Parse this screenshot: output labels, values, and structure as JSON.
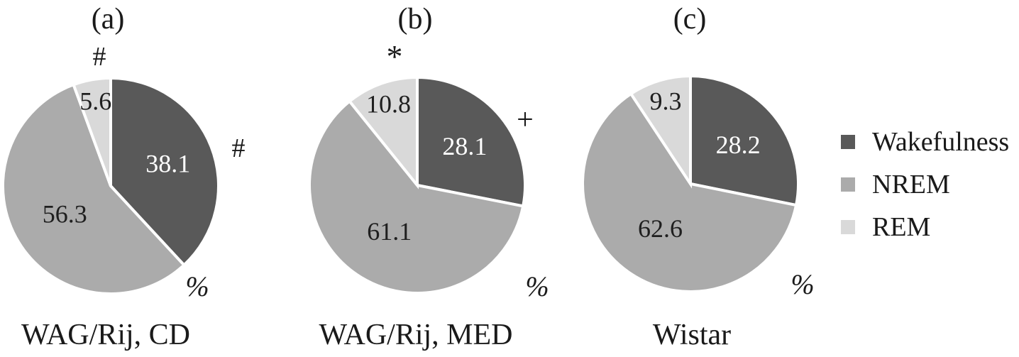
{
  "figure": {
    "background": "#ffffff"
  },
  "colors": {
    "wakefulness": "#595959",
    "nrem": "#ababab",
    "rem": "#d9d9d9",
    "slice_border": "#ffffff",
    "text": "#1a1a1a",
    "value_label_on_dark": "#ffffff",
    "value_label_dark": "#1f1f1f"
  },
  "legend": {
    "position": "right",
    "items": [
      {
        "label": "Wakefulness",
        "color": "#595959"
      },
      {
        "label": "NREM",
        "color": "#ababab"
      },
      {
        "label": "REM",
        "color": "#d9d9d9"
      }
    ]
  },
  "chart_data": [
    {
      "type": "pie",
      "title": "(a)",
      "group": "WAG/Rij, CD",
      "unit": "%",
      "categories": [
        "Wakefulness",
        "NREM",
        "REM"
      ],
      "values": [
        38.1,
        56.3,
        5.6
      ],
      "start_angle_deg": 0,
      "direction": "clockwise",
      "annotations": [
        {
          "symbol": "#",
          "near": "REM slice, top left"
        },
        {
          "symbol": "#",
          "near": "Wakefulness slice, right"
        }
      ]
    },
    {
      "type": "pie",
      "title": "(b)",
      "group": "WAG/Rij, MED",
      "unit": "%",
      "categories": [
        "Wakefulness",
        "NREM",
        "REM"
      ],
      "values": [
        28.1,
        61.1,
        10.8
      ],
      "start_angle_deg": 0,
      "direction": "clockwise",
      "annotations": [
        {
          "symbol": "*",
          "near": "REM slice, top left"
        },
        {
          "symbol": "+",
          "near": "Wakefulness slice, right"
        }
      ]
    },
    {
      "type": "pie",
      "title": "(c)",
      "group": "Wistar",
      "unit": "%",
      "categories": [
        "Wakefulness",
        "NREM",
        "REM"
      ],
      "values": [
        28.2,
        62.6,
        9.3
      ],
      "start_angle_deg": 0,
      "direction": "clockwise",
      "annotations": []
    }
  ]
}
